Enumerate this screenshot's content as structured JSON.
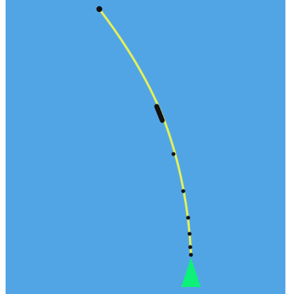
{
  "scene": {
    "background_color": "#52A5E5",
    "frame_color": "#ffffff",
    "path_color": "#E2F05A",
    "marker_color": "#111111",
    "start_marker_color": "#0DF07A"
  },
  "path": {
    "start_marker_icon": "green-triangle-icon",
    "end_marker_icon": "black-dot-icon",
    "waypoint_count": 10
  }
}
